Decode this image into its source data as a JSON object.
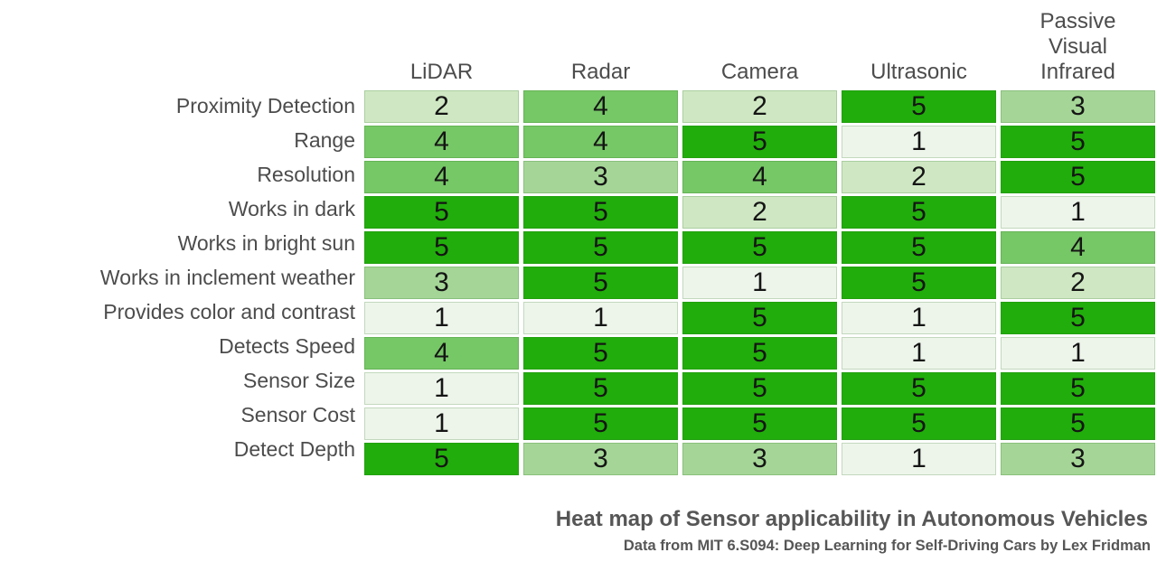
{
  "chart_data": {
    "type": "heatmap",
    "title": "Heat map of Sensor applicability in Autonomous Vehicles",
    "subtitle": "Data from MIT 6.S094: Deep Learning for Self-Driving Cars by Lex Fridman",
    "columns": [
      "LiDAR",
      "Radar",
      "Camera",
      "Ultrasonic",
      "Passive Visual Infrared"
    ],
    "rows": [
      "Proximity Detection",
      "Range",
      "Resolution",
      "Works in dark",
      "Works in bright sun",
      "Works in inclement weather",
      "Provides color and contrast",
      "Detects Speed",
      "Sensor Size",
      "Sensor Cost",
      "Detect Depth"
    ],
    "values": [
      [
        2,
        4,
        2,
        5,
        3
      ],
      [
        4,
        4,
        5,
        1,
        5
      ],
      [
        4,
        3,
        4,
        2,
        5
      ],
      [
        5,
        5,
        2,
        5,
        1
      ],
      [
        5,
        5,
        5,
        5,
        4
      ],
      [
        3,
        5,
        1,
        5,
        2
      ],
      [
        1,
        1,
        5,
        1,
        5
      ],
      [
        4,
        5,
        5,
        1,
        1
      ],
      [
        1,
        5,
        5,
        5,
        5
      ],
      [
        1,
        5,
        5,
        5,
        5
      ],
      [
        5,
        3,
        3,
        1,
        3
      ]
    ],
    "value_range": [
      1,
      5
    ],
    "colors": {
      "1": "#edf5ea",
      "2": "#cfe8c3",
      "3": "#a5d697",
      "4": "#76c766",
      "5": "#21ad0b"
    },
    "layout": {
      "legend": "none",
      "caption_align": "right",
      "last_header_wrapped": true
    }
  }
}
